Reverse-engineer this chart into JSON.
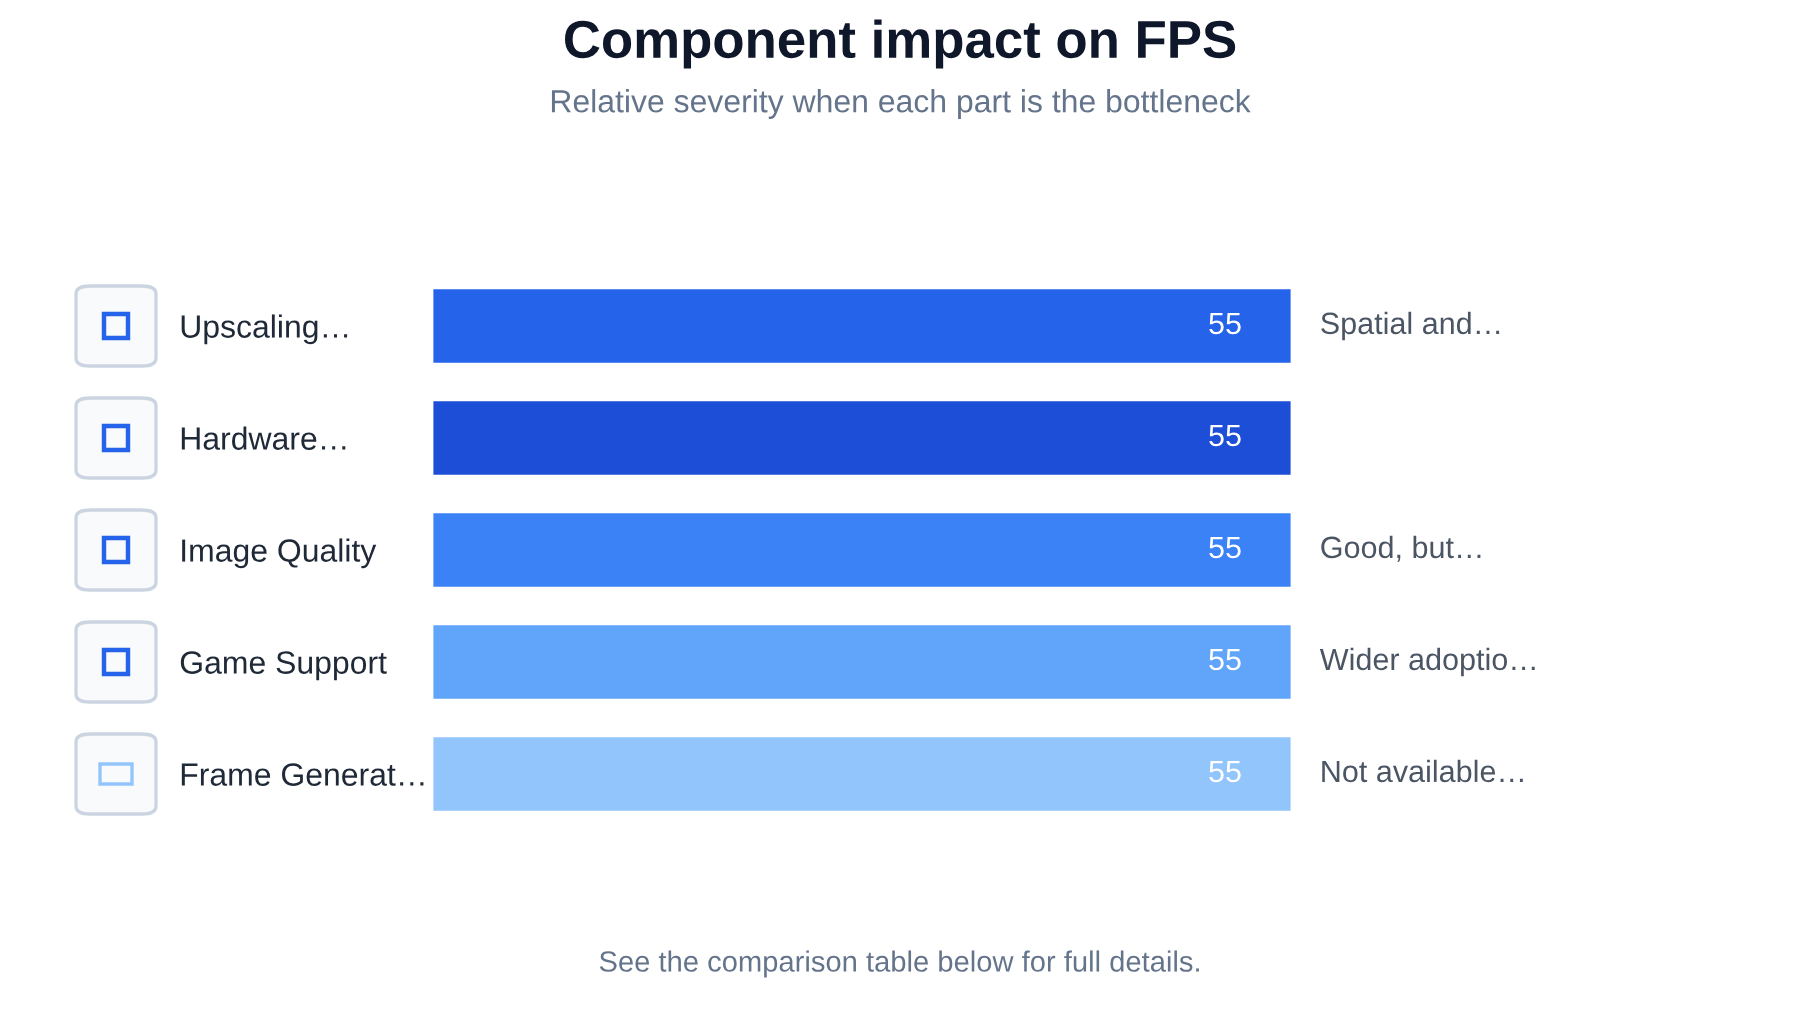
{
  "chart_data": {
    "type": "bar",
    "orientation": "horizontal",
    "title": "Component impact on FPS",
    "subtitle": "Relative severity when each part is the bottleneck",
    "categories": [
      "Upscaling…",
      "Hardware…",
      "Image Quality",
      "Game Support",
      "Frame Generat…"
    ],
    "values": [
      55,
      55,
      55,
      55,
      55
    ],
    "colors": [
      "#2563eb",
      "#1d4ed8",
      "#3b82f6",
      "#60a5fa",
      "#93c5fd"
    ],
    "data_labels": true,
    "annotations": [
      "Spatial and…",
      "Good, but…",
      "Wider adoptio…",
      "Not available…",
      "See the comparison table below for full details."
    ]
  }
}
